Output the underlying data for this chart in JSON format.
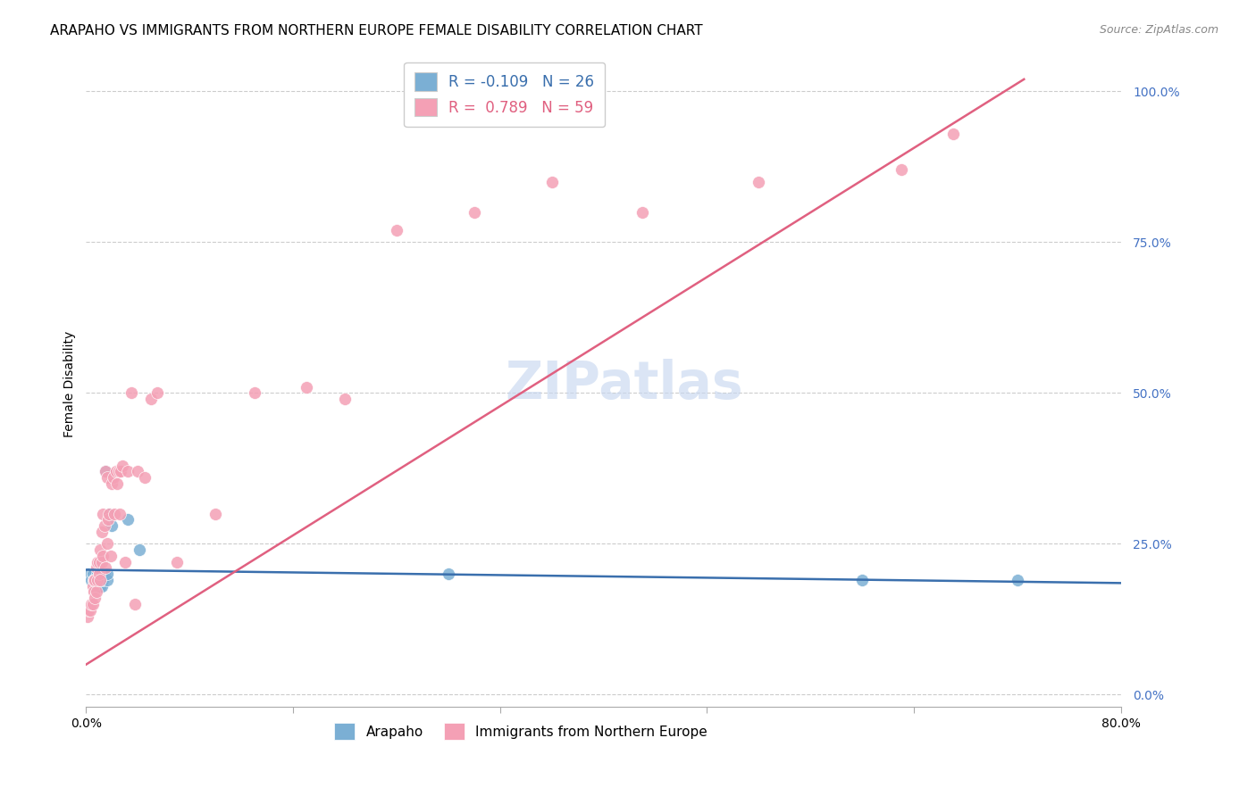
{
  "title": "ARAPAHO VS IMMIGRANTS FROM NORTHERN EUROPE FEMALE DISABILITY CORRELATION CHART",
  "source": "Source: ZipAtlas.com",
  "ylabel": "Female Disability",
  "ytick_vals": [
    0.0,
    0.25,
    0.5,
    0.75,
    1.0
  ],
  "ytick_labels": [
    "0.0%",
    "25.0%",
    "50.0%",
    "75.0%",
    "100.0%"
  ],
  "xlim": [
    0.0,
    0.8
  ],
  "ylim": [
    -0.02,
    1.05
  ],
  "background_color": "#ffffff",
  "arapaho_color": "#7bafd4",
  "immigrant_color": "#f4a0b5",
  "arapaho_line_color": "#3a6fad",
  "immigrant_line_color": "#e06080",
  "legend_R_arapaho": "-0.109",
  "legend_N_arapaho": "26",
  "legend_R_immigrant": "0.789",
  "legend_N_immigrant": "59",
  "arapaho_x": [
    0.002,
    0.004,
    0.005,
    0.006,
    0.007,
    0.008,
    0.008,
    0.009,
    0.009,
    0.01,
    0.01,
    0.011,
    0.012,
    0.012,
    0.013,
    0.014,
    0.015,
    0.016,
    0.016,
    0.018,
    0.02,
    0.032,
    0.041,
    0.28,
    0.6,
    0.72
  ],
  "arapaho_y": [
    0.2,
    0.19,
    0.2,
    0.19,
    0.19,
    0.19,
    0.18,
    0.2,
    0.18,
    0.19,
    0.2,
    0.18,
    0.18,
    0.2,
    0.19,
    0.2,
    0.37,
    0.19,
    0.2,
    0.3,
    0.28,
    0.29,
    0.24,
    0.2,
    0.19,
    0.19
  ],
  "immigrant_x": [
    0.001,
    0.002,
    0.003,
    0.004,
    0.005,
    0.005,
    0.006,
    0.006,
    0.007,
    0.007,
    0.008,
    0.008,
    0.009,
    0.009,
    0.01,
    0.01,
    0.011,
    0.011,
    0.012,
    0.012,
    0.013,
    0.013,
    0.014,
    0.015,
    0.015,
    0.016,
    0.016,
    0.017,
    0.018,
    0.019,
    0.02,
    0.021,
    0.022,
    0.023,
    0.024,
    0.025,
    0.026,
    0.027,
    0.028,
    0.03,
    0.032,
    0.035,
    0.038,
    0.04,
    0.045,
    0.05,
    0.055,
    0.07,
    0.1,
    0.13,
    0.17,
    0.2,
    0.24,
    0.3,
    0.36,
    0.43,
    0.52,
    0.63,
    0.67
  ],
  "immigrant_y": [
    0.13,
    0.14,
    0.14,
    0.15,
    0.15,
    0.18,
    0.17,
    0.19,
    0.16,
    0.19,
    0.17,
    0.21,
    0.19,
    0.22,
    0.2,
    0.22,
    0.24,
    0.19,
    0.27,
    0.22,
    0.3,
    0.23,
    0.28,
    0.21,
    0.37,
    0.25,
    0.36,
    0.29,
    0.3,
    0.23,
    0.35,
    0.36,
    0.3,
    0.37,
    0.35,
    0.37,
    0.3,
    0.37,
    0.38,
    0.22,
    0.37,
    0.5,
    0.15,
    0.37,
    0.36,
    0.49,
    0.5,
    0.22,
    0.3,
    0.5,
    0.51,
    0.49,
    0.77,
    0.8,
    0.85,
    0.8,
    0.85,
    0.87,
    0.93
  ],
  "arapaho_trend_x": [
    0.0,
    0.8
  ],
  "arapaho_trend_y": [
    0.207,
    0.185
  ],
  "immigrant_trend_x": [
    0.0,
    0.725
  ],
  "immigrant_trend_y": [
    0.05,
    1.02
  ],
  "grid_color": "#cccccc",
  "title_fontsize": 11,
  "axis_label_fontsize": 10,
  "tick_fontsize": 10,
  "tick_color": "#4472c4",
  "source_fontsize": 9,
  "xtick_positions": [
    0.0,
    0.16,
    0.32,
    0.48,
    0.64,
    0.8
  ],
  "xtick_labels_show": [
    "0.0%",
    "",
    "",
    "",
    "",
    "80.0%"
  ]
}
